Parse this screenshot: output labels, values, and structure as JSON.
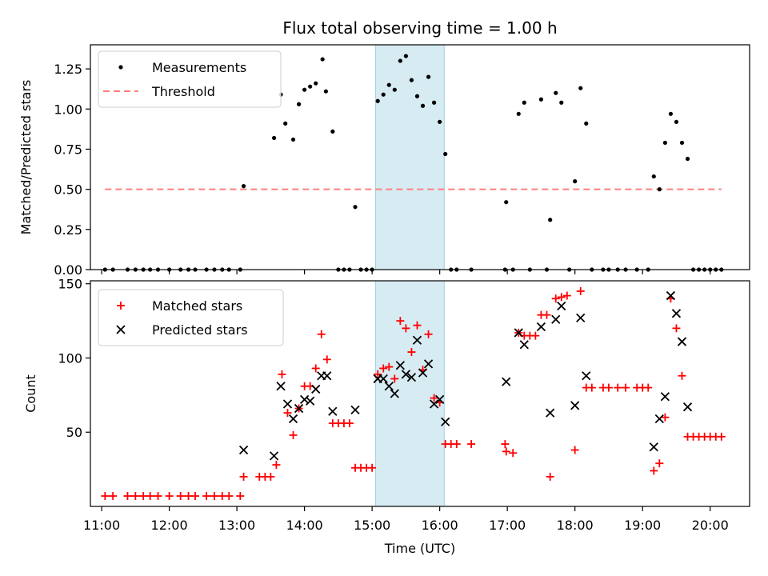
{
  "chart_data": [
    {
      "type": "scatter",
      "title": "Flux total observing time = 1.00 h",
      "xlabel": "",
      "ylabel": "Matched/Predicted stars",
      "ylim": [
        0,
        1.4
      ],
      "xlim": [
        "10:50",
        "20:35"
      ],
      "yticks": [
        "0.00",
        "0.25",
        "0.50",
        "0.75",
        "1.00",
        "1.25"
      ],
      "highlight_span": {
        "start": "15:03",
        "end": "16:04",
        "color": "#add8e6"
      },
      "legend_position": "top-left",
      "series": [
        {
          "name": "Measurements",
          "marker": "dot",
          "color": "#000000",
          "points": [
            [
              "11:03",
              0
            ],
            [
              "11:10",
              0
            ],
            [
              "11:23",
              0
            ],
            [
              "11:30",
              0
            ],
            [
              "11:37",
              0
            ],
            [
              "11:43",
              0
            ],
            [
              "11:50",
              0
            ],
            [
              "12:00",
              0
            ],
            [
              "12:10",
              0
            ],
            [
              "12:17",
              0
            ],
            [
              "12:23",
              0
            ],
            [
              "12:33",
              0
            ],
            [
              "12:40",
              0
            ],
            [
              "12:47",
              0
            ],
            [
              "12:53",
              0
            ],
            [
              "13:03",
              0
            ],
            [
              "13:06",
              0.52
            ],
            [
              "13:33",
              0.82
            ],
            [
              "13:39",
              1.09
            ],
            [
              "13:43",
              0.91
            ],
            [
              "13:50",
              0.81
            ],
            [
              "13:55",
              1.03
            ],
            [
              "14:00",
              1.12
            ],
            [
              "14:05",
              1.14
            ],
            [
              "14:10",
              1.16
            ],
            [
              "14:16",
              1.31
            ],
            [
              "14:19",
              1.11
            ],
            [
              "14:25",
              0.86
            ],
            [
              "14:30",
              0
            ],
            [
              "14:35",
              0
            ],
            [
              "14:40",
              0
            ],
            [
              "14:45",
              0.39
            ],
            [
              "14:50",
              0
            ],
            [
              "14:55",
              0
            ],
            [
              "15:00",
              0
            ],
            [
              "15:05",
              1.05
            ],
            [
              "15:10",
              1.09
            ],
            [
              "15:15",
              1.15
            ],
            [
              "15:20",
              1.12
            ],
            [
              "15:25",
              1.3
            ],
            [
              "15:30",
              1.33
            ],
            [
              "15:35",
              1.18
            ],
            [
              "15:40",
              1.08
            ],
            [
              "15:45",
              1.02
            ],
            [
              "15:50",
              1.2
            ],
            [
              "15:55",
              1.04
            ],
            [
              "16:00",
              0.92
            ],
            [
              "16:05",
              0.72
            ],
            [
              "16:10",
              0
            ],
            [
              "16:15",
              0
            ],
            [
              "16:28",
              0
            ],
            [
              "16:58",
              0
            ],
            [
              "16:59",
              0.42
            ],
            [
              "17:05",
              0
            ],
            [
              "17:10",
              0.97
            ],
            [
              "17:15",
              1.04
            ],
            [
              "17:20",
              0
            ],
            [
              "17:30",
              1.06
            ],
            [
              "17:35",
              0
            ],
            [
              "17:38",
              0.31
            ],
            [
              "17:43",
              1.1
            ],
            [
              "17:48",
              1.04
            ],
            [
              "17:55",
              0
            ],
            [
              "18:00",
              0.55
            ],
            [
              "18:05",
              1.13
            ],
            [
              "18:10",
              0.91
            ],
            [
              "18:15",
              0
            ],
            [
              "18:25",
              0
            ],
            [
              "18:30",
              0
            ],
            [
              "18:38",
              0
            ],
            [
              "18:45",
              0
            ],
            [
              "18:55",
              0
            ],
            [
              "19:05",
              0
            ],
            [
              "19:10",
              0.58
            ],
            [
              "19:15",
              0.5
            ],
            [
              "19:20",
              0.79
            ],
            [
              "19:25",
              0.97
            ],
            [
              "19:30",
              0.92
            ],
            [
              "19:35",
              0.79
            ],
            [
              "19:40",
              0.69
            ],
            [
              "19:45",
              0
            ],
            [
              "19:50",
              0
            ],
            [
              "19:55",
              0
            ],
            [
              "20:00",
              0
            ],
            [
              "20:05",
              0
            ],
            [
              "20:10",
              0
            ]
          ]
        },
        {
          "name": "Threshold",
          "marker": "dashed-line",
          "color": "#ff7f7f",
          "points": [
            [
              "11:03",
              0.5
            ],
            [
              "20:10",
              0.5
            ]
          ]
        }
      ]
    },
    {
      "type": "scatter",
      "title": "",
      "xlabel": "Time (UTC)",
      "ylabel": "Count",
      "ylim": [
        0,
        152
      ],
      "xlim": [
        "10:50",
        "20:35"
      ],
      "yticks": [
        "50",
        "100",
        "150"
      ],
      "xticks": [
        "11:00",
        "12:00",
        "13:00",
        "14:00",
        "15:00",
        "16:00",
        "17:00",
        "18:00",
        "19:00",
        "20:00"
      ],
      "highlight_span": {
        "start": "15:03",
        "end": "16:04",
        "color": "#add8e6"
      },
      "legend_position": "top-left",
      "series": [
        {
          "name": "Matched stars",
          "marker": "plus",
          "color": "#ff0000",
          "points": [
            [
              "11:03",
              7
            ],
            [
              "11:10",
              7
            ],
            [
              "11:23",
              7
            ],
            [
              "11:30",
              7
            ],
            [
              "11:37",
              7
            ],
            [
              "11:43",
              7
            ],
            [
              "11:50",
              7
            ],
            [
              "12:00",
              7
            ],
            [
              "12:10",
              7
            ],
            [
              "12:17",
              7
            ],
            [
              "12:23",
              7
            ],
            [
              "12:33",
              7
            ],
            [
              "12:40",
              7
            ],
            [
              "12:47",
              7
            ],
            [
              "12:53",
              7
            ],
            [
              "13:03",
              7
            ],
            [
              "13:06",
              20
            ],
            [
              "13:20",
              20
            ],
            [
              "13:25",
              20
            ],
            [
              "13:30",
              20
            ],
            [
              "13:35",
              28
            ],
            [
              "13:40",
              89
            ],
            [
              "13:45",
              63
            ],
            [
              "13:50",
              48
            ],
            [
              "13:55",
              66
            ],
            [
              "14:00",
              81
            ],
            [
              "14:05",
              81
            ],
            [
              "14:10",
              93
            ],
            [
              "14:15",
              116
            ],
            [
              "14:20",
              99
            ],
            [
              "14:25",
              56
            ],
            [
              "14:30",
              56
            ],
            [
              "14:35",
              56
            ],
            [
              "14:40",
              56
            ],
            [
              "14:45",
              26
            ],
            [
              "14:50",
              26
            ],
            [
              "14:55",
              26
            ],
            [
              "15:00",
              26
            ],
            [
              "15:05",
              89
            ],
            [
              "15:10",
              93
            ],
            [
              "15:15",
              94
            ],
            [
              "15:20",
              86
            ],
            [
              "15:25",
              125
            ],
            [
              "15:30",
              120
            ],
            [
              "15:35",
              104
            ],
            [
              "15:40",
              122
            ],
            [
              "15:45",
              92
            ],
            [
              "15:50",
              116
            ],
            [
              "15:55",
              73
            ],
            [
              "16:00",
              70
            ],
            [
              "16:05",
              42
            ],
            [
              "16:10",
              42
            ],
            [
              "16:15",
              42
            ],
            [
              "16:28",
              42
            ],
            [
              "16:58",
              42
            ],
            [
              "16:59",
              37
            ],
            [
              "17:05",
              36
            ],
            [
              "17:10",
              117
            ],
            [
              "17:15",
              115
            ],
            [
              "17:20",
              115
            ],
            [
              "17:25",
              115
            ],
            [
              "17:30",
              129
            ],
            [
              "17:35",
              129
            ],
            [
              "17:38",
              20
            ],
            [
              "17:43",
              140
            ],
            [
              "17:48",
              141
            ],
            [
              "17:53",
              142
            ],
            [
              "18:00",
              38
            ],
            [
              "18:05",
              145
            ],
            [
              "18:10",
              80
            ],
            [
              "18:15",
              80
            ],
            [
              "18:25",
              80
            ],
            [
              "18:30",
              80
            ],
            [
              "18:38",
              80
            ],
            [
              "18:45",
              80
            ],
            [
              "18:55",
              80
            ],
            [
              "19:00",
              80
            ],
            [
              "19:05",
              80
            ],
            [
              "19:10",
              24
            ],
            [
              "19:15",
              29
            ],
            [
              "19:20",
              60
            ],
            [
              "19:25",
              140
            ],
            [
              "19:30",
              120
            ],
            [
              "19:35",
              88
            ],
            [
              "19:40",
              47
            ],
            [
              "19:45",
              47
            ],
            [
              "19:50",
              47
            ],
            [
              "19:55",
              47
            ],
            [
              "20:00",
              47
            ],
            [
              "20:05",
              47
            ],
            [
              "20:10",
              47
            ]
          ]
        },
        {
          "name": "Predicted stars",
          "marker": "x",
          "color": "#000000",
          "points": [
            [
              "13:06",
              38
            ],
            [
              "13:33",
              34
            ],
            [
              "13:39",
              81
            ],
            [
              "13:45",
              69
            ],
            [
              "13:50",
              59
            ],
            [
              "13:55",
              66
            ],
            [
              "14:00",
              72
            ],
            [
              "14:05",
              71
            ],
            [
              "14:10",
              79
            ],
            [
              "14:15",
              88
            ],
            [
              "14:20",
              88
            ],
            [
              "14:25",
              64
            ],
            [
              "14:45",
              65
            ],
            [
              "15:05",
              86
            ],
            [
              "15:10",
              86
            ],
            [
              "15:15",
              81
            ],
            [
              "15:20",
              76
            ],
            [
              "15:25",
              95
            ],
            [
              "15:30",
              89
            ],
            [
              "15:35",
              87
            ],
            [
              "15:40",
              112
            ],
            [
              "15:45",
              90
            ],
            [
              "15:50",
              96
            ],
            [
              "15:55",
              69
            ],
            [
              "16:00",
              72
            ],
            [
              "16:05",
              57
            ],
            [
              "16:59",
              84
            ],
            [
              "17:10",
              117
            ],
            [
              "17:15",
              109
            ],
            [
              "17:30",
              121
            ],
            [
              "17:38",
              63
            ],
            [
              "17:43",
              126
            ],
            [
              "17:48",
              135
            ],
            [
              "18:00",
              68
            ],
            [
              "18:05",
              127
            ],
            [
              "18:10",
              88
            ],
            [
              "19:10",
              40
            ],
            [
              "19:15",
              59
            ],
            [
              "19:20",
              74
            ],
            [
              "19:25",
              142
            ],
            [
              "19:30",
              130
            ],
            [
              "19:35",
              111
            ],
            [
              "19:40",
              67
            ]
          ]
        }
      ]
    }
  ]
}
